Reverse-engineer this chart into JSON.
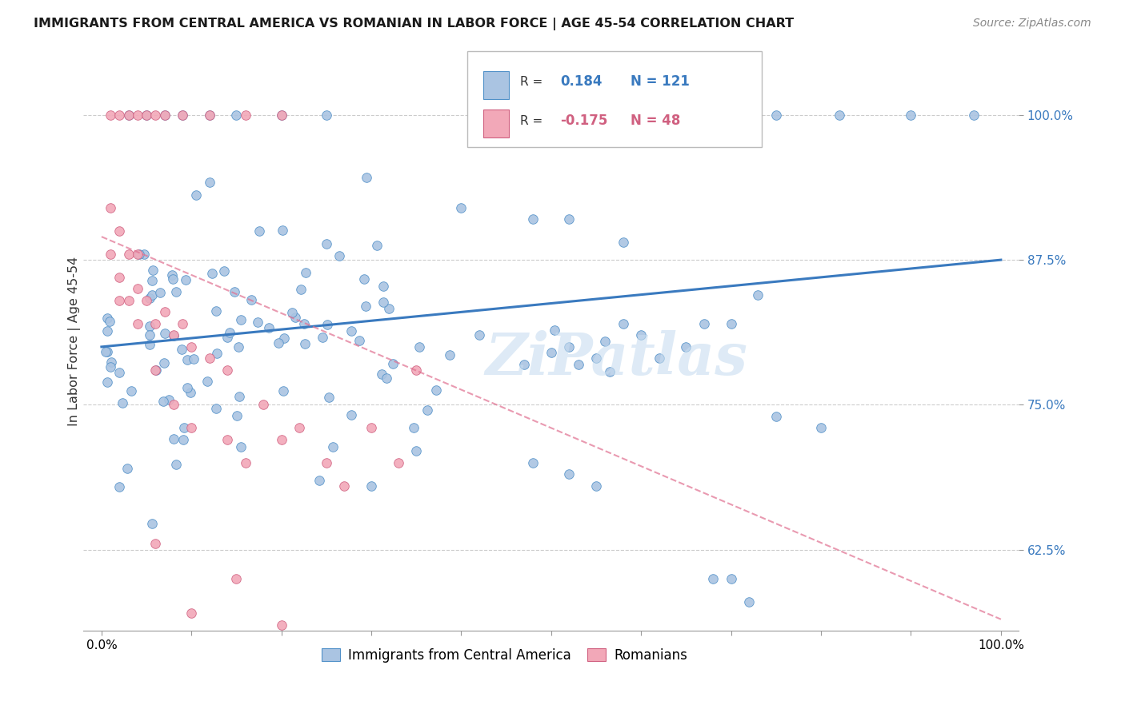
{
  "title": "IMMIGRANTS FROM CENTRAL AMERICA VS ROMANIAN IN LABOR FORCE | AGE 45-54 CORRELATION CHART",
  "source": "Source: ZipAtlas.com",
  "ylabel": "In Labor Force | Age 45-54",
  "ytick_values": [
    0.625,
    0.75,
    0.875,
    1.0
  ],
  "ytick_labels": [
    "62.5%",
    "75.0%",
    "87.5%",
    "100.0%"
  ],
  "xlim": [
    -0.02,
    1.02
  ],
  "ylim": [
    0.555,
    1.055
  ],
  "legend_label1": "Immigrants from Central America",
  "legend_label2": "Romanians",
  "R1": 0.184,
  "N1": 121,
  "R2": -0.175,
  "N2": 48,
  "color_blue": "#aac4e2",
  "color_pink": "#f2a8b8",
  "edge_blue": "#5090c8",
  "edge_pink": "#d06080",
  "line_blue": "#3a7abf",
  "line_pink": "#e07090",
  "blue_line_y0": 0.8,
  "blue_line_y1": 0.875,
  "pink_line_x0": 0.0,
  "pink_line_y0": 0.895,
  "pink_line_x1": 1.0,
  "pink_line_y1": 0.565,
  "watermark_text": "ZiPatlas",
  "watermark_color": "#c8ddf0",
  "grid_color": "#cccccc",
  "ytick_color": "#3a7abf",
  "xtick_left": "0.0%",
  "xtick_right": "100.0%"
}
